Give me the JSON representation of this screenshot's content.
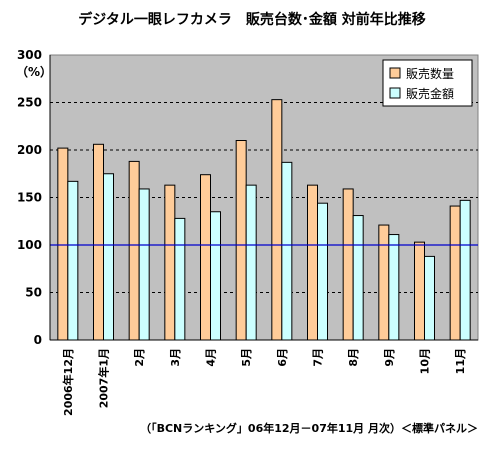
{
  "chart_data": {
    "type": "bar",
    "title": "デジタル一眼レフカメラ　販売台数･金額 対前年比推移",
    "unit_label": "（%）",
    "categories": [
      "2006年12月",
      "2007年1月",
      "2月",
      "3月",
      "4月",
      "5月",
      "6月",
      "7月",
      "8月",
      "9月",
      "10月",
      "11月"
    ],
    "series": [
      {
        "name": "販売数量",
        "color": "#FFCC99",
        "values": [
          202,
          206,
          188,
          163,
          174,
          210,
          253,
          163,
          159,
          121,
          103,
          141
        ]
      },
      {
        "name": "販売金額",
        "color": "#CCFFFF",
        "values": [
          167,
          175,
          159,
          128,
          135,
          163,
          187,
          144,
          131,
          111,
          88,
          147
        ]
      }
    ],
    "ylim": [
      0,
      300
    ],
    "yticks": [
      0,
      50,
      100,
      150,
      200,
      250,
      300
    ],
    "reference_line": {
      "value": 100,
      "color": "#0000CC"
    },
    "plot_background": "#C0C0C0",
    "grid": "dashed horizontal",
    "legend_position": "top-right",
    "footnote": "（「BCNランキング」06年12月－07年11月 月次）＜標準パネル＞"
  }
}
